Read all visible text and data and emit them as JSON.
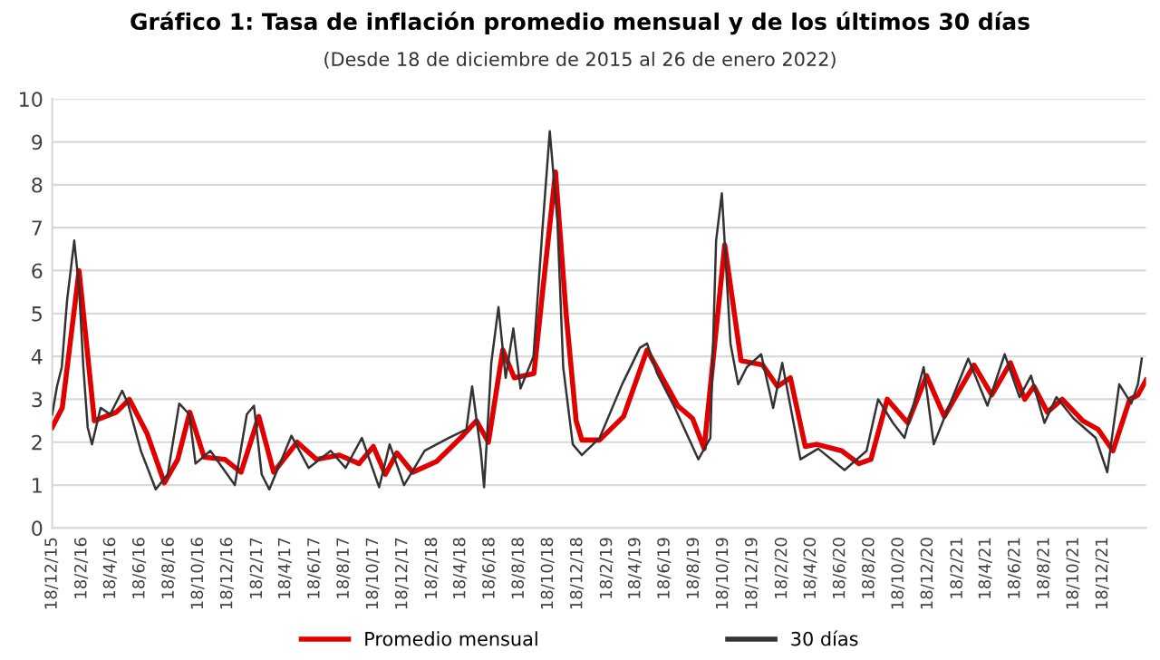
{
  "chart_data": {
    "type": "line",
    "title": "Gráfico 1: Tasa de inflación promedio mensual y de los últimos 30 días",
    "subtitle": "(Desde 18 de diciembre de 2015 al 26 de enero 2022)",
    "series": [
      {
        "name": "Promedio mensual",
        "color": "#e00000",
        "x": [
          "2015-12-18",
          "2016-01-08",
          "2016-02-12",
          "2016-03-15",
          "2016-04-30",
          "2016-05-27",
          "2016-07-03",
          "2016-08-08",
          "2016-09-05",
          "2016-09-30",
          "2016-10-30",
          "2016-12-12",
          "2017-01-15",
          "2017-02-21",
          "2017-03-24",
          "2017-05-12",
          "2017-06-21",
          "2017-08-08",
          "2017-09-18",
          "2017-10-18",
          "2017-11-12",
          "2017-12-06",
          "2018-01-08",
          "2018-02-27",
          "2018-04-18",
          "2018-05-21",
          "2018-06-15",
          "2018-07-15",
          "2018-08-08",
          "2018-09-18",
          "2018-10-06",
          "2018-11-02",
          "2018-11-24",
          "2018-12-15",
          "2018-12-27",
          "2019-02-02",
          "2019-03-24",
          "2019-05-12",
          "2019-07-15",
          "2019-08-15",
          "2019-09-08",
          "2019-10-21",
          "2019-11-24",
          "2020-01-08",
          "2020-02-08",
          "2020-03-06",
          "2020-04-06",
          "2020-04-30",
          "2020-06-21",
          "2020-07-27",
          "2020-08-21",
          "2020-09-24",
          "2020-11-06",
          "2020-12-15",
          "2021-01-21",
          "2021-03-24",
          "2021-04-30",
          "2021-06-08",
          "2021-07-08",
          "2021-07-27",
          "2021-08-24",
          "2021-09-24",
          "2021-11-06",
          "2021-12-08",
          "2022-01-08",
          "2022-02-12",
          "2022-03-01",
          "2022-03-18"
        ],
        "values": [
          2.35,
          2.8,
          6.0,
          2.5,
          2.7,
          3.0,
          2.2,
          1.05,
          1.6,
          2.7,
          1.65,
          1.6,
          1.3,
          2.6,
          1.3,
          2.0,
          1.6,
          1.7,
          1.5,
          1.9,
          1.25,
          1.75,
          1.3,
          1.55,
          2.1,
          2.5,
          2.0,
          4.15,
          3.5,
          3.6,
          5.5,
          8.3,
          5.0,
          2.5,
          2.05,
          2.05,
          2.6,
          4.15,
          2.85,
          2.55,
          1.85,
          6.6,
          3.9,
          3.8,
          3.3,
          3.5,
          1.9,
          1.95,
          1.8,
          1.5,
          1.6,
          3.0,
          2.45,
          3.55,
          2.6,
          3.8,
          3.1,
          3.85,
          3.0,
          3.3,
          2.7,
          3.0,
          2.5,
          2.3,
          1.8,
          3.0,
          3.1,
          3.45
        ]
      },
      {
        "name": "30 días",
        "color": "#333333",
        "x": [
          "2015-12-18",
          "2015-12-28",
          "2016-01-07",
          "2016-01-18",
          "2016-02-02",
          "2016-02-12",
          "2016-02-21",
          "2016-03-01",
          "2016-03-10",
          "2016-03-28",
          "2016-04-17",
          "2016-05-12",
          "2016-05-24",
          "2016-06-20",
          "2016-07-21",
          "2016-08-15",
          "2016-09-08",
          "2016-09-29",
          "2016-10-12",
          "2016-11-12",
          "2017-01-02",
          "2017-01-27",
          "2017-02-11",
          "2017-02-27",
          "2017-03-15",
          "2017-04-30",
          "2017-06-05",
          "2017-07-21",
          "2017-08-21",
          "2017-09-24",
          "2017-10-30",
          "2017-11-21",
          "2017-12-21",
          "2018-02-02",
          "2018-03-24",
          "2018-04-30",
          "2018-05-12",
          "2018-05-30",
          "2018-06-06",
          "2018-06-21",
          "2018-07-06",
          "2018-07-21",
          "2018-08-06",
          "2018-08-21",
          "2018-09-17",
          "2018-10-06",
          "2018-10-21",
          "2018-11-06",
          "2018-11-18",
          "2018-12-08",
          "2018-12-27",
          "2019-02-02",
          "2019-03-21",
          "2019-04-27",
          "2019-05-12",
          "2019-06-02",
          "2019-07-09",
          "2019-08-27",
          "2019-09-21",
          "2019-10-03",
          "2019-10-15",
          "2019-11-02",
          "2019-11-18",
          "2019-12-06",
          "2020-01-05",
          "2020-01-30",
          "2020-02-18",
          "2020-03-27",
          "2020-05-03",
          "2020-06-27",
          "2020-08-12",
          "2020-09-05",
          "2020-10-06",
          "2020-10-30",
          "2020-12-09",
          "2020-12-30",
          "2021-02-02",
          "2021-03-12",
          "2021-04-21",
          "2021-05-27",
          "2021-06-27",
          "2021-07-21",
          "2021-08-18",
          "2021-09-12",
          "2021-10-18",
          "2021-12-03",
          "2021-12-27",
          "2022-01-21",
          "2022-02-15",
          "2022-03-01",
          "2022-03-09"
        ],
        "values": [
          2.65,
          3.3,
          3.75,
          5.3,
          6.7,
          5.6,
          3.75,
          2.35,
          1.95,
          2.8,
          2.65,
          3.2,
          2.9,
          1.8,
          0.9,
          1.25,
          2.9,
          2.65,
          1.5,
          1.8,
          1.0,
          2.65,
          2.85,
          1.25,
          0.9,
          2.15,
          1.4,
          1.8,
          1.4,
          2.1,
          0.95,
          1.95,
          1.0,
          1.8,
          2.1,
          2.3,
          3.3,
          1.8,
          0.95,
          3.85,
          5.15,
          3.5,
          4.65,
          3.25,
          4.0,
          7.0,
          9.25,
          7.15,
          3.75,
          1.95,
          1.7,
          2.1,
          3.35,
          4.2,
          4.3,
          3.6,
          2.8,
          1.6,
          2.1,
          6.7,
          7.8,
          4.3,
          3.35,
          3.75,
          4.05,
          2.8,
          3.85,
          1.6,
          1.85,
          1.35,
          1.8,
          3.0,
          2.45,
          2.1,
          3.75,
          1.95,
          2.9,
          3.95,
          2.85,
          4.05,
          3.05,
          3.55,
          2.45,
          3.05,
          2.55,
          2.1,
          1.3,
          3.35,
          2.9,
          3.35,
          3.95
        ]
      }
    ],
    "xlim": [
      "2015-12-18",
      "2022-03-18"
    ],
    "xticks": [
      {
        "value": "2015-12-18",
        "label": "18/12/15"
      },
      {
        "value": "2016-02-18",
        "label": "18/2/16"
      },
      {
        "value": "2016-04-18",
        "label": "18/4/16"
      },
      {
        "value": "2016-06-18",
        "label": "18/6/16"
      },
      {
        "value": "2016-08-18",
        "label": "18/8/16"
      },
      {
        "value": "2016-10-18",
        "label": "18/10/16"
      },
      {
        "value": "2016-12-18",
        "label": "18/12/16"
      },
      {
        "value": "2017-02-18",
        "label": "18/2/17"
      },
      {
        "value": "2017-04-18",
        "label": "18/4/17"
      },
      {
        "value": "2017-06-18",
        "label": "18/6/17"
      },
      {
        "value": "2017-08-18",
        "label": "18/8/17"
      },
      {
        "value": "2017-10-18",
        "label": "18/10/17"
      },
      {
        "value": "2017-12-18",
        "label": "18/12/17"
      },
      {
        "value": "2018-02-18",
        "label": "18/2/18"
      },
      {
        "value": "2018-04-18",
        "label": "18/4/18"
      },
      {
        "value": "2018-06-18",
        "label": "18/6/18"
      },
      {
        "value": "2018-08-18",
        "label": "18/8/18"
      },
      {
        "value": "2018-10-18",
        "label": "18/10/18"
      },
      {
        "value": "2018-12-18",
        "label": "18/12/18"
      },
      {
        "value": "2019-02-18",
        "label": "18/2/19"
      },
      {
        "value": "2019-04-18",
        "label": "18/4/19"
      },
      {
        "value": "2019-06-18",
        "label": "18/6/19"
      },
      {
        "value": "2019-08-18",
        "label": "18/8/19"
      },
      {
        "value": "2019-10-18",
        "label": "18/10/19"
      },
      {
        "value": "2019-12-18",
        "label": "18/12/19"
      },
      {
        "value": "2020-02-18",
        "label": "18/2/20"
      },
      {
        "value": "2020-04-18",
        "label": "18/4/20"
      },
      {
        "value": "2020-06-18",
        "label": "18/6/20"
      },
      {
        "value": "2020-08-18",
        "label": "18/8/20"
      },
      {
        "value": "2020-10-18",
        "label": "18/10/20"
      },
      {
        "value": "2020-12-18",
        "label": "18/12/20"
      },
      {
        "value": "2021-02-18",
        "label": "18/2/21"
      },
      {
        "value": "2021-04-18",
        "label": "18/4/21"
      },
      {
        "value": "2021-06-18",
        "label": "18/6/21"
      },
      {
        "value": "2021-08-18",
        "label": "18/8/21"
      },
      {
        "value": "2021-10-18",
        "label": "18/10/21"
      },
      {
        "value": "2021-12-18",
        "label": "18/12/21"
      }
    ],
    "ylim": [
      0,
      10
    ],
    "yticks": [
      0,
      1,
      2,
      3,
      4,
      5,
      6,
      7,
      8,
      9,
      10
    ],
    "grid": "y",
    "legend": "bottom",
    "marker": "none",
    "line_style": "solid"
  }
}
